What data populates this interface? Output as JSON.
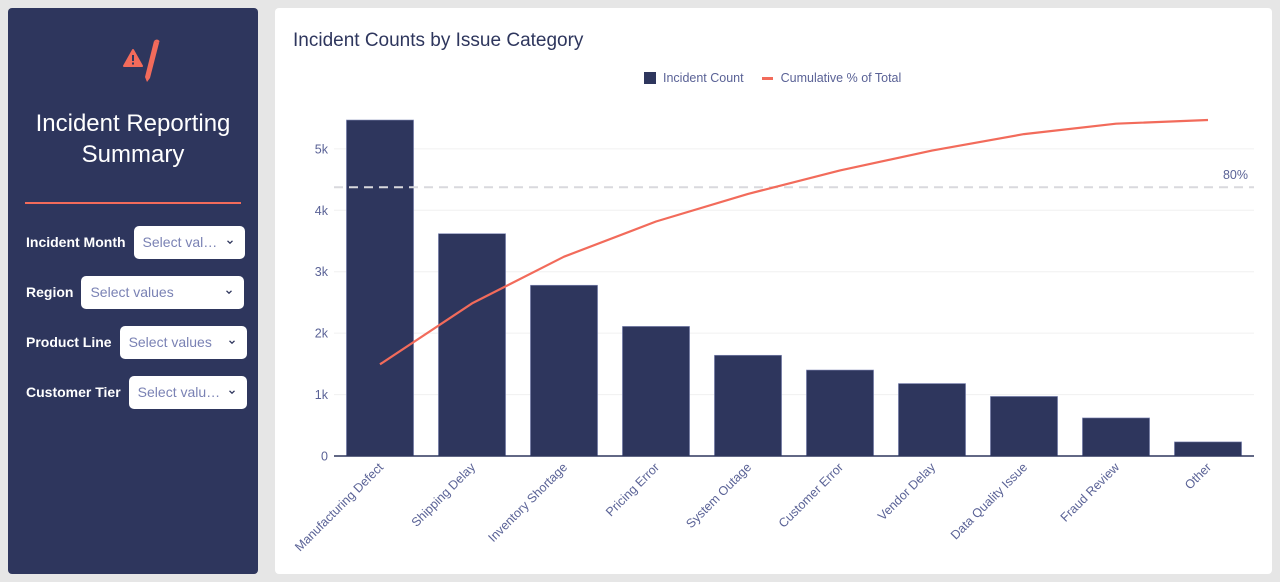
{
  "sidebar": {
    "logo_icon": "warning-pencil-icon",
    "title_line1": "Incident Reporting",
    "title_line2": "Summary",
    "accent": "#f26b5b",
    "filters": [
      {
        "label": "Incident Month",
        "placeholder": "Select val…"
      },
      {
        "label": "Region",
        "placeholder": "Select values"
      },
      {
        "label": "Product Line",
        "placeholder": "Select values"
      },
      {
        "label": "Customer Tier",
        "placeholder": "Select values"
      }
    ]
  },
  "chart_data": {
    "type": "bar",
    "title": "Incident Counts by Issue Category",
    "xlabel": "",
    "ylabel": "",
    "categories": [
      "Manufacturing Defect",
      "Shipping Delay",
      "Inventory Shortage",
      "Pricing Error",
      "System Outage",
      "Customer Error",
      "Vendor Delay",
      "Data Quality Issue",
      "Fraud Review",
      "Other"
    ],
    "series": [
      {
        "name": "Incident Count",
        "type": "bar",
        "color": "#2e365d",
        "values": [
          5470,
          3620,
          2780,
          2110,
          1640,
          1400,
          1180,
          970,
          620,
          230
        ]
      },
      {
        "name": "Cumulative % of Total",
        "type": "line",
        "color": "#f26b5b",
        "values": [
          27.3,
          45.4,
          59.3,
          69.8,
          78.0,
          85.0,
          90.9,
          95.8,
          98.9,
          100.0
        ]
      }
    ],
    "ylim": [
      0,
      5600
    ],
    "yticks": [
      0,
      1000,
      2000,
      3000,
      4000,
      5000
    ],
    "ytick_labels": [
      "0",
      "1k",
      "2k",
      "3k",
      "4k",
      "5k"
    ],
    "reference_line": {
      "value": 80,
      "label": "80%"
    },
    "legend": "top-center",
    "grid": true
  }
}
